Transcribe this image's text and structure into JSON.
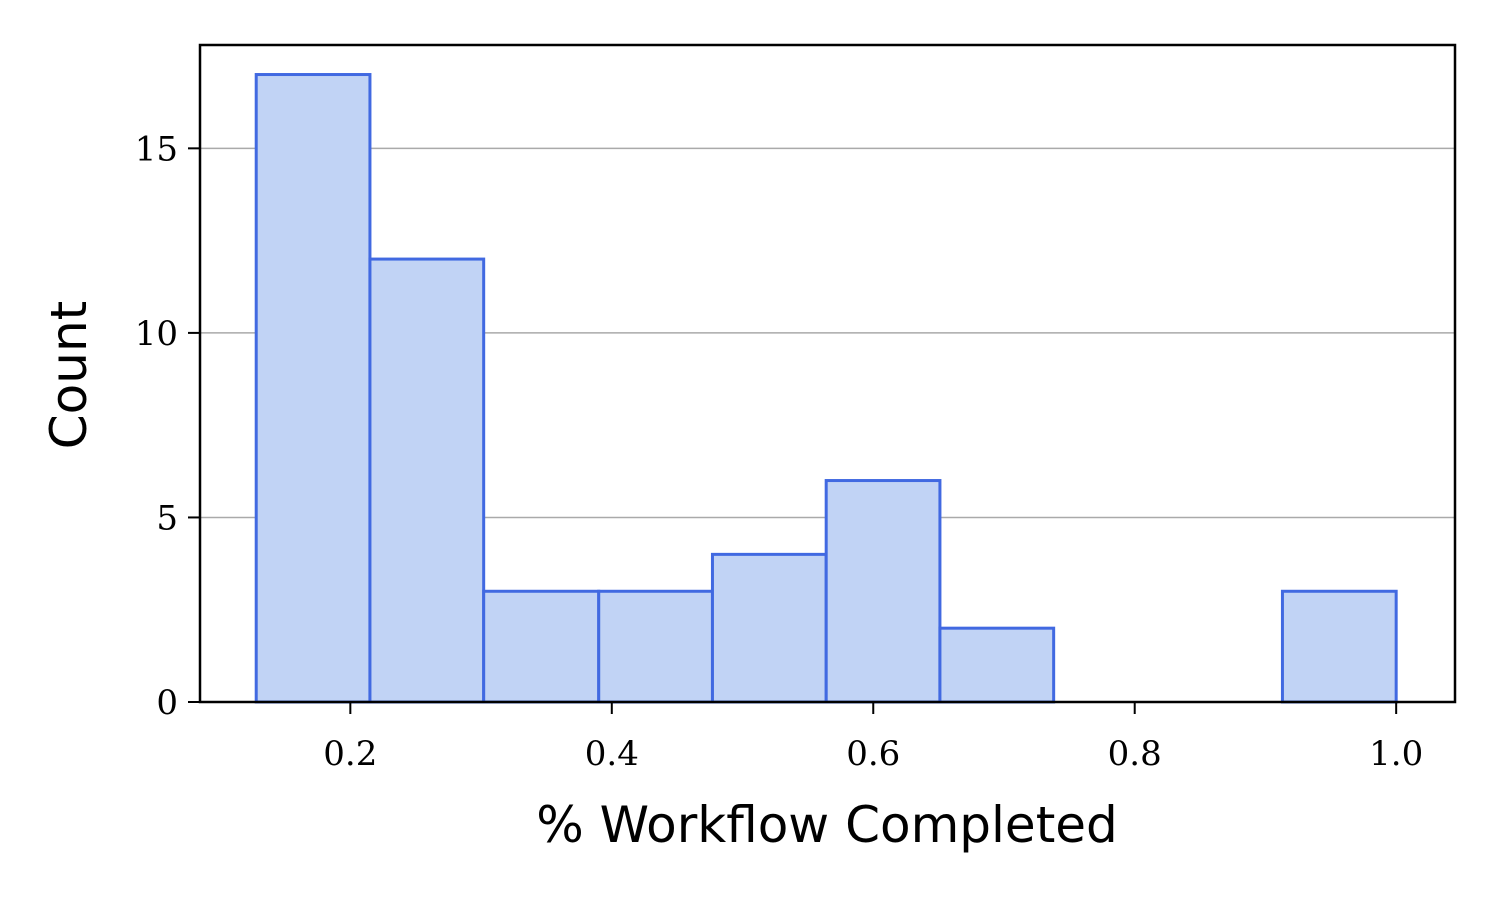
{
  "chart_data": {
    "type": "bar",
    "title": "",
    "xlabel": "% Workflow Completed",
    "ylabel": "Count",
    "xlim": [
      0.085,
      1.045
    ],
    "ylim": [
      0,
      17.8
    ],
    "bins": [
      {
        "x0": 0.128,
        "x1": 0.215,
        "count": 17
      },
      {
        "x0": 0.215,
        "x1": 0.302,
        "count": 12
      },
      {
        "x0": 0.302,
        "x1": 0.39,
        "count": 3
      },
      {
        "x0": 0.39,
        "x1": 0.477,
        "count": 3
      },
      {
        "x0": 0.477,
        "x1": 0.564,
        "count": 4
      },
      {
        "x0": 0.564,
        "x1": 0.651,
        "count": 6
      },
      {
        "x0": 0.651,
        "x1": 0.738,
        "count": 2
      },
      {
        "x0": 0.738,
        "x1": 0.826,
        "count": 0
      },
      {
        "x0": 0.826,
        "x1": 0.913,
        "count": 0
      },
      {
        "x0": 0.913,
        "x1": 1.0,
        "count": 3
      }
    ],
    "x_ticks": [
      {
        "value": 0.2,
        "label": "0.2"
      },
      {
        "value": 0.4,
        "label": "0.4"
      },
      {
        "value": 0.6,
        "label": "0.6"
      },
      {
        "value": 0.8,
        "label": "0.8"
      },
      {
        "value": 1.0,
        "label": "1.0"
      }
    ],
    "y_ticks": [
      {
        "value": 0,
        "label": "0"
      },
      {
        "value": 5,
        "label": "5"
      },
      {
        "value": 10,
        "label": "10"
      },
      {
        "value": 15,
        "label": "15"
      }
    ],
    "grid": "y",
    "legend": "none",
    "colors": {
      "bar_fill": "#c1d3f5",
      "bar_edge": "#4169e1",
      "grid": "#aaaaaa",
      "axis": "#000000"
    }
  }
}
